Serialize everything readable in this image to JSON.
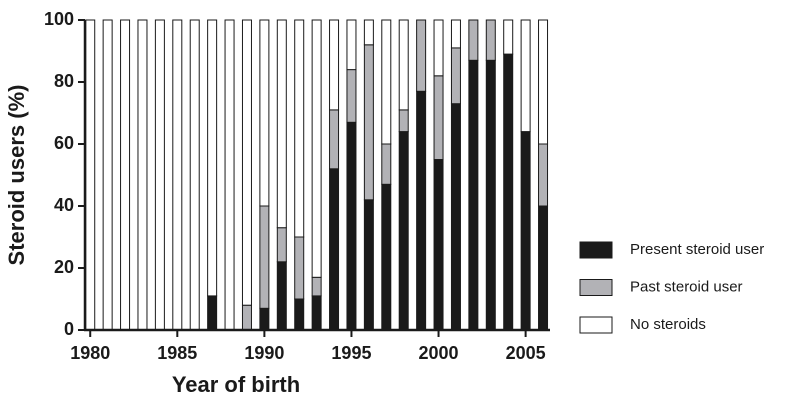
{
  "chart_data": {
    "type": "stacked-bar",
    "x_label": "Year of birth",
    "y_label": "Steroid users (%)",
    "x": [
      1980,
      1981,
      1982,
      1983,
      1984,
      1985,
      1986,
      1987,
      1988,
      1989,
      1990,
      1991,
      1992,
      1993,
      1994,
      1995,
      1996,
      1997,
      1998,
      1999,
      2000,
      2001,
      2002,
      2003,
      2004,
      2005,
      2006
    ],
    "series": [
      {
        "name": "Present steroid user",
        "color": "#1a1a1a",
        "values": [
          0,
          0,
          0,
          0,
          0,
          0,
          0,
          11,
          0,
          0,
          7,
          22,
          10,
          11,
          52,
          67,
          42,
          47,
          64,
          77,
          55,
          73,
          87,
          87,
          89,
          64,
          40
        ]
      },
      {
        "name": "Past steroid user",
        "color": "#b2b2b6",
        "values": [
          0,
          0,
          0,
          0,
          0,
          0,
          0,
          0,
          0,
          8,
          33,
          11,
          20,
          6,
          19,
          17,
          50,
          13,
          7,
          23,
          27,
          18,
          13,
          13,
          0,
          0,
          20
        ]
      },
      {
        "name": "No steroids",
        "color": "#ffffff",
        "values": [
          100,
          100,
          100,
          100,
          100,
          100,
          100,
          89,
          100,
          92,
          60,
          67,
          70,
          83,
          29,
          16,
          8,
          40,
          29,
          0,
          18,
          9,
          0,
          0,
          11,
          36,
          40
        ]
      }
    ],
    "xlim": [
      1979.7,
      2006.4
    ],
    "xticks": [
      1980,
      1985,
      1990,
      1995,
      2000,
      2005
    ],
    "ylim": [
      0,
      100
    ],
    "yticks": [
      0,
      20,
      40,
      60,
      80,
      100
    ],
    "legend": "right"
  }
}
